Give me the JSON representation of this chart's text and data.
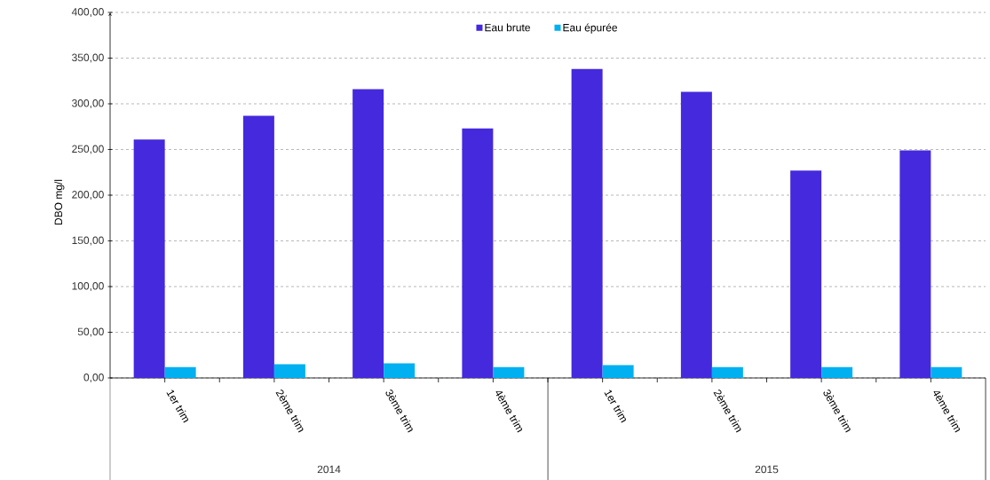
{
  "chart_data": {
    "type": "bar",
    "ylabel": "DBO mg/l",
    "categories": [
      "1er trim",
      "2ème trim",
      "3ème trim",
      "4ème trim",
      "1er trim",
      "2ème trim",
      "3ème trim",
      "4ème trim"
    ],
    "series": [
      {
        "name": "Eau brute",
        "color": "#4429dd",
        "values": [
          261,
          287,
          316,
          273,
          338,
          313,
          227,
          249
        ]
      },
      {
        "name": "Eau épurée",
        "color": "#00b0f0",
        "values": [
          12,
          15,
          16,
          12,
          14,
          12,
          12,
          12
        ]
      }
    ],
    "ylim": [
      0,
      400
    ],
    "yticks": [
      {
        "value": 0,
        "label": "0,00"
      },
      {
        "value": 50,
        "label": "50,00"
      },
      {
        "value": 100,
        "label": "100,00"
      },
      {
        "value": 150,
        "label": "150,00"
      },
      {
        "value": 200,
        "label": "200,00"
      },
      {
        "value": 250,
        "label": "250,00"
      },
      {
        "value": 300,
        "label": "300,00"
      },
      {
        "value": 350,
        "label": "350,00"
      },
      {
        "value": 400,
        "label": "400,00"
      }
    ],
    "annotations": [
      "2014",
      "2015"
    ],
    "grid": "y",
    "legend": "top"
  }
}
